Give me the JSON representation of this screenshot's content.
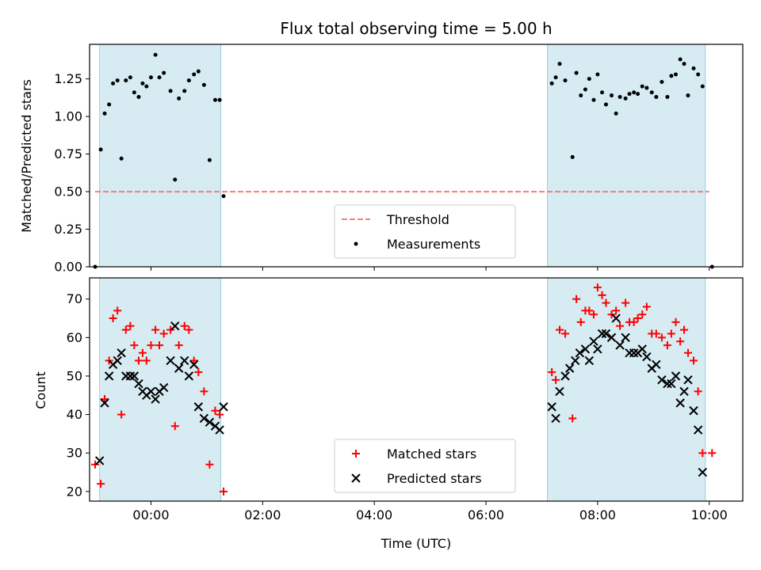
{
  "chart_data": [
    {
      "type": "scatter",
      "title": "Flux total observing time = 5.00 h",
      "xlabel": "",
      "ylabel": "Matched/Predicted stars",
      "xlim": [
        -1.1,
        10.6
      ],
      "ylim": [
        0.0,
        1.48
      ],
      "yticks": [
        0.0,
        0.25,
        0.5,
        0.75,
        1.0,
        1.25
      ],
      "ytick_labels": [
        "0.00",
        "0.25",
        "0.50",
        "0.75",
        "1.00",
        "1.25"
      ],
      "xticks": [
        0,
        2,
        4,
        6,
        8,
        10
      ],
      "shaded_intervals": [
        [
          -0.92,
          1.25
        ],
        [
          7.1,
          9.93
        ]
      ],
      "threshold": {
        "name": "Threshold",
        "value": 0.5,
        "x_range": [
          -1.0,
          10.0
        ],
        "color": "#f08080"
      },
      "legend": {
        "location": "lower-center",
        "entries": [
          "Threshold",
          "Measurements"
        ]
      },
      "series": [
        {
          "name": "Measurements",
          "color": "#000000",
          "points": [
            [
              -1.0,
              0.0
            ],
            [
              -0.9,
              0.78
            ],
            [
              -0.83,
              1.02
            ],
            [
              -0.75,
              1.08
            ],
            [
              -0.68,
              1.22
            ],
            [
              -0.6,
              1.24
            ],
            [
              -0.53,
              0.72
            ],
            [
              -0.45,
              1.24
            ],
            [
              -0.37,
              1.26
            ],
            [
              -0.3,
              1.16
            ],
            [
              -0.22,
              1.13
            ],
            [
              -0.15,
              1.22
            ],
            [
              -0.08,
              1.2
            ],
            [
              0.0,
              1.26
            ],
            [
              0.08,
              1.41
            ],
            [
              0.15,
              1.26
            ],
            [
              0.23,
              1.29
            ],
            [
              0.35,
              1.17
            ],
            [
              0.43,
              0.58
            ],
            [
              0.5,
              1.12
            ],
            [
              0.6,
              1.17
            ],
            [
              0.68,
              1.24
            ],
            [
              0.77,
              1.28
            ],
            [
              0.85,
              1.3
            ],
            [
              0.95,
              1.21
            ],
            [
              1.05,
              0.71
            ],
            [
              1.15,
              1.11
            ],
            [
              1.23,
              1.11
            ],
            [
              1.3,
              0.47
            ],
            [
              7.18,
              1.22
            ],
            [
              7.25,
              1.26
            ],
            [
              7.32,
              1.35
            ],
            [
              7.42,
              1.24
            ],
            [
              7.55,
              0.73
            ],
            [
              7.62,
              1.29
            ],
            [
              7.7,
              1.14
            ],
            [
              7.78,
              1.18
            ],
            [
              7.85,
              1.25
            ],
            [
              7.93,
              1.11
            ],
            [
              8.0,
              1.28
            ],
            [
              8.08,
              1.16
            ],
            [
              8.15,
              1.08
            ],
            [
              8.25,
              1.14
            ],
            [
              8.33,
              1.02
            ],
            [
              8.4,
              1.13
            ],
            [
              8.5,
              1.12
            ],
            [
              8.57,
              1.15
            ],
            [
              8.65,
              1.16
            ],
            [
              8.72,
              1.15
            ],
            [
              8.8,
              1.2
            ],
            [
              8.88,
              1.19
            ],
            [
              8.97,
              1.16
            ],
            [
              9.05,
              1.13
            ],
            [
              9.15,
              1.23
            ],
            [
              9.25,
              1.13
            ],
            [
              9.32,
              1.27
            ],
            [
              9.4,
              1.28
            ],
            [
              9.48,
              1.38
            ],
            [
              9.55,
              1.35
            ],
            [
              9.62,
              1.14
            ],
            [
              9.72,
              1.32
            ],
            [
              9.8,
              1.28
            ],
            [
              9.88,
              1.2
            ],
            [
              10.05,
              0.0
            ]
          ]
        }
      ]
    },
    {
      "type": "scatter",
      "title": "",
      "xlabel": "Time (UTC)",
      "ylabel": "Count",
      "xlim": [
        -1.1,
        10.6
      ],
      "ylim": [
        17.5,
        75.5
      ],
      "yticks": [
        20,
        30,
        40,
        50,
        60,
        70
      ],
      "ytick_labels": [
        "20",
        "30",
        "40",
        "50",
        "60",
        "70"
      ],
      "xticks": [
        0,
        2,
        4,
        6,
        8,
        10
      ],
      "xtick_labels": [
        "00:00",
        "02:00",
        "04:00",
        "06:00",
        "08:00",
        "10:00"
      ],
      "shaded_intervals": [
        [
          -0.92,
          1.25
        ],
        [
          7.1,
          9.93
        ]
      ],
      "legend": {
        "location": "lower-center",
        "entries": [
          "Matched stars",
          "Predicted stars"
        ]
      },
      "series": [
        {
          "name": "Matched stars",
          "marker": "plus",
          "color": "#ff0000",
          "points": [
            [
              -1.0,
              27
            ],
            [
              -0.9,
              22
            ],
            [
              -0.83,
              44
            ],
            [
              -0.75,
              54
            ],
            [
              -0.68,
              65
            ],
            [
              -0.6,
              67
            ],
            [
              -0.53,
              40
            ],
            [
              -0.45,
              62
            ],
            [
              -0.37,
              63
            ],
            [
              -0.3,
              58
            ],
            [
              -0.22,
              54
            ],
            [
              -0.15,
              56
            ],
            [
              -0.08,
              54
            ],
            [
              0.0,
              58
            ],
            [
              0.08,
              62
            ],
            [
              0.15,
              58
            ],
            [
              0.23,
              61
            ],
            [
              0.35,
              62
            ],
            [
              0.43,
              37
            ],
            [
              0.5,
              58
            ],
            [
              0.6,
              63
            ],
            [
              0.68,
              62
            ],
            [
              0.77,
              54
            ],
            [
              0.85,
              51
            ],
            [
              0.95,
              46
            ],
            [
              1.05,
              27
            ],
            [
              1.15,
              41
            ],
            [
              1.23,
              40
            ],
            [
              1.3,
              20
            ],
            [
              7.18,
              51
            ],
            [
              7.25,
              49
            ],
            [
              7.32,
              62
            ],
            [
              7.42,
              61
            ],
            [
              7.55,
              39
            ],
            [
              7.62,
              70
            ],
            [
              7.7,
              64
            ],
            [
              7.78,
              67
            ],
            [
              7.85,
              67
            ],
            [
              7.93,
              66
            ],
            [
              8.0,
              73
            ],
            [
              8.08,
              71
            ],
            [
              8.15,
              69
            ],
            [
              8.25,
              66
            ],
            [
              8.33,
              67
            ],
            [
              8.4,
              63
            ],
            [
              8.5,
              69
            ],
            [
              8.57,
              64
            ],
            [
              8.65,
              64
            ],
            [
              8.72,
              65
            ],
            [
              8.8,
              66
            ],
            [
              8.88,
              68
            ],
            [
              8.97,
              61
            ],
            [
              9.05,
              61
            ],
            [
              9.15,
              60
            ],
            [
              9.25,
              58
            ],
            [
              9.32,
              61
            ],
            [
              9.4,
              64
            ],
            [
              9.48,
              59
            ],
            [
              9.55,
              62
            ],
            [
              9.62,
              56
            ],
            [
              9.72,
              54
            ],
            [
              9.8,
              46
            ],
            [
              9.88,
              30
            ],
            [
              10.05,
              30
            ]
          ]
        },
        {
          "name": "Predicted stars",
          "marker": "x",
          "color": "#000000",
          "points": [
            [
              -0.92,
              28
            ],
            [
              -0.83,
              43
            ],
            [
              -0.75,
              50
            ],
            [
              -0.68,
              53
            ],
            [
              -0.6,
              54
            ],
            [
              -0.53,
              56
            ],
            [
              -0.45,
              50
            ],
            [
              -0.37,
              50
            ],
            [
              -0.3,
              50
            ],
            [
              -0.22,
              48
            ],
            [
              -0.15,
              46
            ],
            [
              -0.08,
              45
            ],
            [
              0.0,
              46
            ],
            [
              0.08,
              44
            ],
            [
              0.15,
              46
            ],
            [
              0.23,
              47
            ],
            [
              0.35,
              54
            ],
            [
              0.43,
              63
            ],
            [
              0.5,
              52
            ],
            [
              0.6,
              54
            ],
            [
              0.68,
              50
            ],
            [
              0.77,
              53
            ],
            [
              0.85,
              42
            ],
            [
              0.95,
              39
            ],
            [
              1.05,
              38
            ],
            [
              1.15,
              37
            ],
            [
              1.23,
              36
            ],
            [
              1.3,
              42
            ],
            [
              7.18,
              42
            ],
            [
              7.25,
              39
            ],
            [
              7.32,
              46
            ],
            [
              7.42,
              50
            ],
            [
              7.5,
              52
            ],
            [
              7.6,
              54
            ],
            [
              7.68,
              56
            ],
            [
              7.78,
              57
            ],
            [
              7.85,
              54
            ],
            [
              7.93,
              59
            ],
            [
              8.0,
              57
            ],
            [
              8.08,
              61
            ],
            [
              8.15,
              61
            ],
            [
              8.25,
              60
            ],
            [
              8.33,
              65
            ],
            [
              8.4,
              58
            ],
            [
              8.5,
              60
            ],
            [
              8.57,
              56
            ],
            [
              8.65,
              56
            ],
            [
              8.72,
              56
            ],
            [
              8.8,
              57
            ],
            [
              8.88,
              55
            ],
            [
              8.97,
              52
            ],
            [
              9.05,
              53
            ],
            [
              9.15,
              49
            ],
            [
              9.25,
              48
            ],
            [
              9.32,
              48
            ],
            [
              9.4,
              50
            ],
            [
              9.48,
              43
            ],
            [
              9.55,
              46
            ],
            [
              9.62,
              49
            ],
            [
              9.72,
              41
            ],
            [
              9.8,
              36
            ],
            [
              9.88,
              25
            ]
          ]
        }
      ]
    }
  ]
}
